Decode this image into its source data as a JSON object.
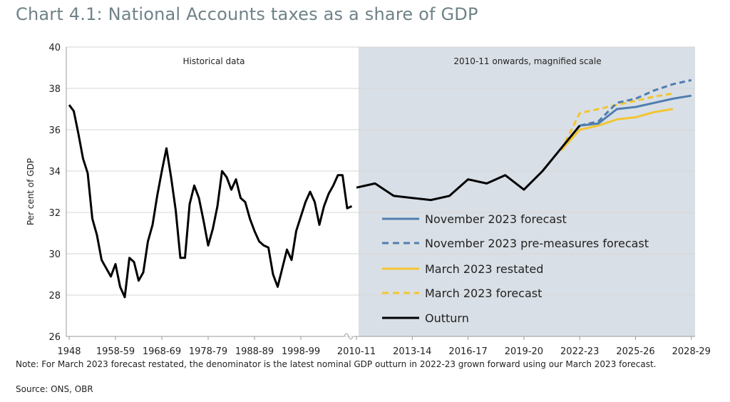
{
  "title": "Chart 4.1: National Accounts taxes as a share of GDP",
  "note": "Note: For March 2023 forecast restated, the denominator is the latest nominal GDP outturn in 2022-23 grown forward using our March 2023 forecast.",
  "source": "Source: ONS, OBR",
  "colors": {
    "shade": "#d9dfe6",
    "outturn": "#000000",
    "november": "#4f7eb0",
    "march": "#f2c531",
    "axis": "#9a9a9a",
    "gridline": "#d6d6d6"
  },
  "chart_data": {
    "type": "line",
    "ylabel": "Per cent of GDP",
    "ylim": [
      26,
      40
    ],
    "yticks": [
      "26",
      "28",
      "30",
      "32",
      "34",
      "36",
      "38",
      "40"
    ],
    "grid": true,
    "legend_position": "bottom-right",
    "panels": [
      {
        "label": "Historical data",
        "scale": "annual",
        "xticks": [
          "1948",
          "1958-59",
          "1968-69",
          "1978-79",
          "1988-89",
          "1998-99"
        ],
        "x": [
          "1948",
          "1949",
          "1950",
          "1951",
          "1952",
          "1953",
          "1954",
          "1955",
          "1956",
          "1957",
          "1958",
          "1959",
          "1960",
          "1961",
          "1962",
          "1963",
          "1964",
          "1965",
          "1966",
          "1967",
          "1968",
          "1969",
          "1970",
          "1971",
          "1972",
          "1973",
          "1974",
          "1975",
          "1976",
          "1977",
          "1978",
          "1979",
          "1980",
          "1981",
          "1982",
          "1983",
          "1984",
          "1985",
          "1986",
          "1987",
          "1988",
          "1989",
          "1990",
          "1991",
          "1992",
          "1993",
          "1994",
          "1995",
          "1996",
          "1997",
          "1998",
          "1999",
          "2000",
          "2001",
          "2002",
          "2003",
          "2004",
          "2005",
          "2006",
          "2007",
          "2008",
          "2009"
        ],
        "values": [
          37.2,
          36.9,
          35.8,
          34.6,
          33.9,
          31.7,
          30.9,
          29.7,
          29.3,
          28.9,
          29.5,
          28.4,
          27.9,
          29.8,
          29.6,
          28.7,
          29.1,
          30.6,
          31.4,
          32.8,
          34.0,
          35.1,
          33.7,
          32.1,
          29.8,
          29.8,
          32.4,
          33.3,
          32.7,
          31.6,
          30.4,
          31.2,
          32.3,
          34.0,
          33.7,
          33.1,
          33.6,
          32.7,
          32.5,
          31.7,
          31.1,
          30.6,
          30.4,
          30.3,
          29.0,
          28.4,
          29.3,
          30.2,
          29.7,
          31.1,
          31.8,
          32.5,
          33.0,
          32.5,
          31.4,
          32.3,
          32.9,
          33.3,
          33.8,
          33.8,
          32.2,
          32.3
        ]
      },
      {
        "label": "2010-11 onwards, magnified scale",
        "scale": "magnified",
        "xticks": [
          "2010-11",
          "2013-14",
          "2016-17",
          "2019-20",
          "2022-23",
          "2025-26",
          "2028-29"
        ],
        "x": [
          "2010-11",
          "2011-12",
          "2012-13",
          "2013-14",
          "2014-15",
          "2015-16",
          "2016-17",
          "2017-18",
          "2018-19",
          "2019-20",
          "2020-21",
          "2021-22",
          "2022-23",
          "2023-24",
          "2024-25",
          "2025-26",
          "2026-27",
          "2027-28",
          "2028-29"
        ],
        "series": [
          {
            "name": "November 2023 forecast",
            "style": "solid",
            "color_key": "november",
            "values": [
              null,
              null,
              null,
              null,
              null,
              null,
              null,
              null,
              null,
              null,
              null,
              null,
              36.2,
              36.3,
              37.0,
              37.1,
              37.3,
              37.5,
              37.65
            ]
          },
          {
            "name": "November 2023 pre-measures forecast",
            "style": "dashed",
            "color_key": "november",
            "values": [
              null,
              null,
              null,
              null,
              null,
              null,
              null,
              null,
              null,
              null,
              null,
              null,
              36.2,
              36.4,
              37.3,
              37.5,
              37.9,
              38.2,
              38.4
            ]
          },
          {
            "name": "March 2023 restated",
            "style": "solid",
            "color_key": "march",
            "values": [
              null,
              null,
              null,
              null,
              null,
              null,
              null,
              null,
              null,
              null,
              null,
              35.0,
              36.0,
              36.2,
              36.5,
              36.6,
              36.85,
              37.0,
              null
            ]
          },
          {
            "name": "March 2023 forecast",
            "style": "dashed",
            "color_key": "march",
            "values": [
              null,
              null,
              null,
              null,
              null,
              null,
              null,
              null,
              null,
              null,
              null,
              35.0,
              36.8,
              37.0,
              37.2,
              37.4,
              37.6,
              37.75,
              null
            ]
          },
          {
            "name": "Outturn",
            "style": "solid",
            "color_key": "outturn",
            "values": [
              33.2,
              33.4,
              32.8,
              32.7,
              32.6,
              32.8,
              33.6,
              33.4,
              33.8,
              33.1,
              34.0,
              35.1,
              36.2,
              null,
              null,
              null,
              null,
              null,
              null
            ]
          }
        ]
      }
    ]
  }
}
